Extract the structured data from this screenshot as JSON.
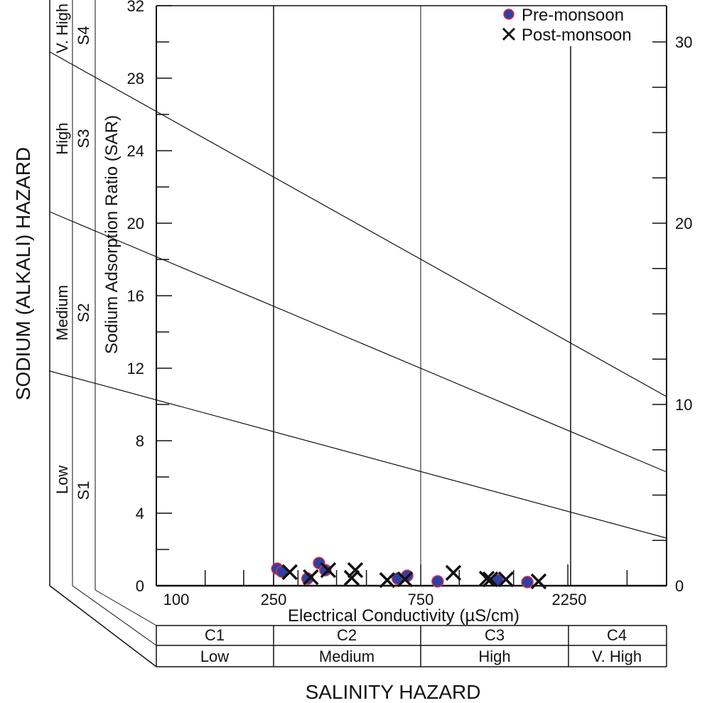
{
  "chart_data": {
    "type": "scatter",
    "xlabel": "Electrical Conductivity (µS/cm)",
    "ylabel": "Sodium Adsorption Ratio (SAR)",
    "x_scale": "log",
    "xlim": [
      100,
      4600
    ],
    "ylim": [
      0,
      32
    ],
    "x_ticks": [
      100,
      250,
      750,
      2250
    ],
    "y_ticks": [
      0,
      4,
      8,
      12,
      16,
      20,
      24,
      28,
      32
    ],
    "y_ticks_right": [
      0,
      10,
      20,
      30
    ],
    "legend_position": "top-right",
    "series": [
      {
        "name": "Pre-monsoon",
        "marker": "circle",
        "color": "#2f3fa6",
        "edge_color": "#e0303a",
        "x": [
          257,
          266,
          322,
          351,
          368,
          632,
          678,
          851,
          1330,
          1663
        ],
        "y": [
          0.94,
          0.78,
          0.39,
          1.25,
          0.86,
          0.39,
          0.55,
          0.24,
          0.31,
          0.2
        ]
      },
      {
        "name": "Post-monsoon",
        "marker": "x",
        "color": "#111111",
        "x": [
          282,
          330,
          376,
          448,
          460,
          584,
          667,
          957,
          1228,
          1261,
          1417,
          1808
        ],
        "y": [
          0.75,
          0.47,
          0.86,
          0.43,
          0.86,
          0.31,
          0.35,
          0.71,
          0.39,
          0.35,
          0.35,
          0.24
        ]
      }
    ],
    "sodium_hazard": {
      "title": "SODIUM (ALKALI) HAZARD",
      "classes": [
        {
          "code": "S1",
          "label": "Low"
        },
        {
          "code": "S2",
          "label": "Medium"
        },
        {
          "code": "S3",
          "label": "High"
        },
        {
          "code": "S4",
          "label": "V. High"
        }
      ]
    },
    "salinity_hazard": {
      "title": "SALINITY HAZARD",
      "classes": [
        {
          "code": "C1",
          "label": "Low"
        },
        {
          "code": "C2",
          "label": "Medium"
        },
        {
          "code": "C3",
          "label": "High"
        },
        {
          "code": "C4",
          "label": "V. High"
        }
      ]
    }
  }
}
